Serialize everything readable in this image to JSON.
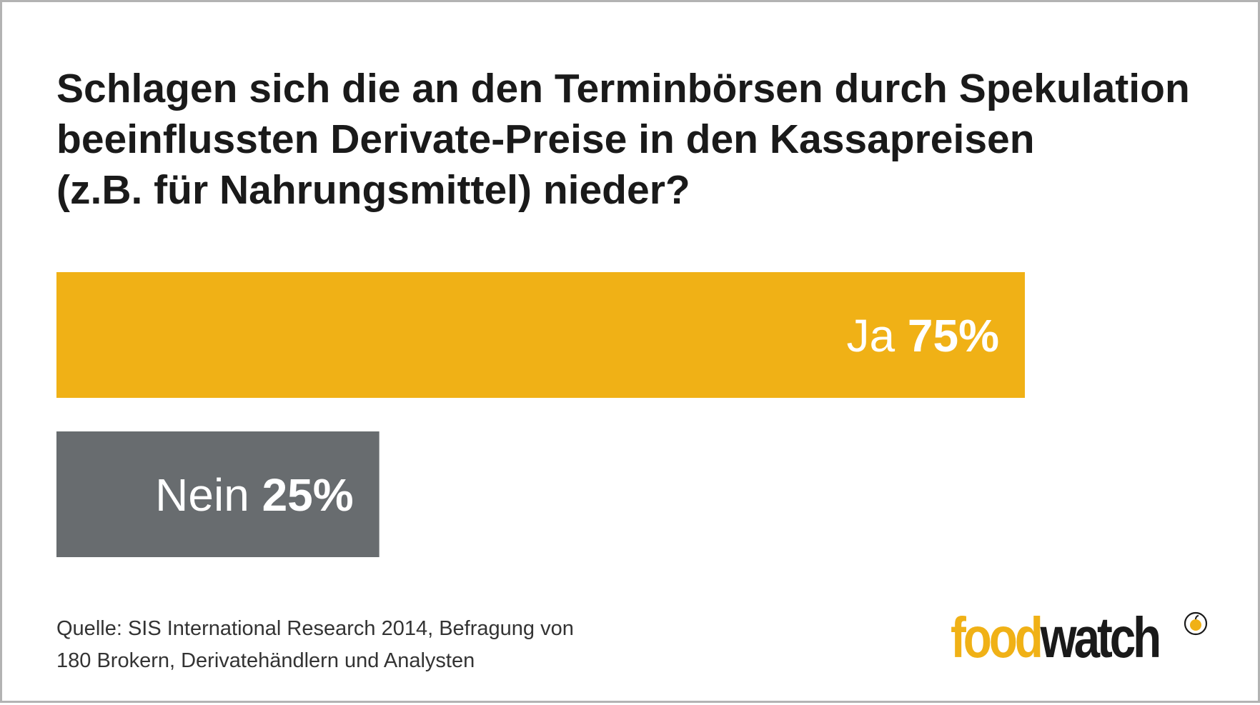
{
  "title_lines": [
    "Schlagen sich die an den Terminbörsen durch Spekulation",
    "beeinflussten Derivate-Preise in den Kassapreisen",
    "(z.B. für Nahrungsmittel) nieder?"
  ],
  "chart_data": {
    "type": "bar",
    "orientation": "horizontal",
    "categories": [
      "Ja",
      "Nein"
    ],
    "values": [
      75,
      25
    ],
    "value_labels": [
      "75%",
      "25%"
    ],
    "colors": [
      "#f0b116",
      "#686c6f"
    ],
    "xlim": [
      0,
      75
    ],
    "grid": false
  },
  "source_lines": [
    "Quelle: SIS International Research 2014, Befragung von",
    "180 Brokern, Derivatehändlern und Analysten"
  ],
  "logo": {
    "part1": "food",
    "part2": "watch",
    "colors": {
      "food": "#f0b116",
      "watch": "#1a1a1a"
    }
  }
}
